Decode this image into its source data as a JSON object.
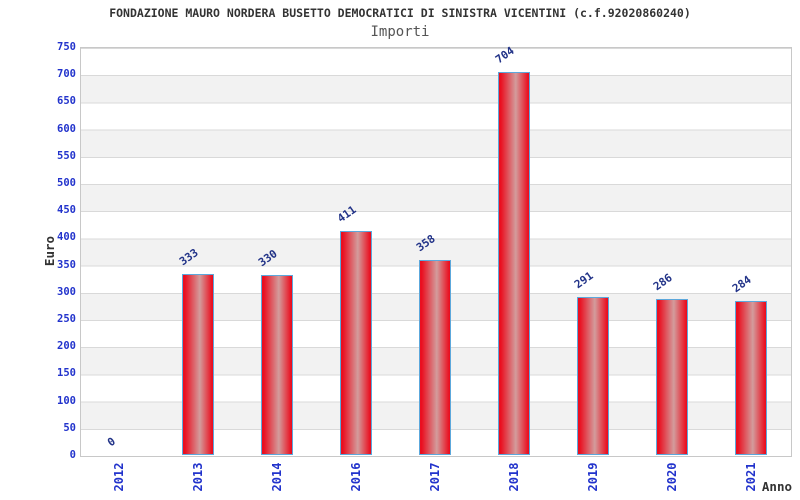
{
  "title": "FONDAZIONE MAURO NORDERA BUSETTO DEMOCRATICI DI SINISTRA VICENTINI (c.f.92020860240)",
  "subtitle": "Importi",
  "chart_data": {
    "type": "bar",
    "title": "Importi",
    "categories": [
      "2012",
      "2013",
      "2014",
      "2016",
      "2017",
      "2018",
      "2019",
      "2020",
      "2021"
    ],
    "values": [
      0,
      333,
      330,
      411,
      358,
      704,
      291,
      286,
      284
    ],
    "xlabel": "Anno",
    "ylabel": "Euro",
    "ylim": [
      0,
      750
    ],
    "ytick_step": 50,
    "grid": true,
    "legend": false,
    "bar_value_labels": [
      0,
      333,
      330,
      411,
      358,
      704,
      291,
      286,
      284
    ]
  },
  "colors": {
    "title_text": "#333333",
    "subtitle_text": "#555555",
    "axis_text": "#2233cc",
    "value_label": "#223388",
    "bar_red": "#ea0f20",
    "bar_light": "#d39c9c",
    "bar_edge": "#5ca8dc",
    "band": "#f2f2f2",
    "gridline": "#d9d9d9",
    "plot_border": "#c8c8c8"
  }
}
